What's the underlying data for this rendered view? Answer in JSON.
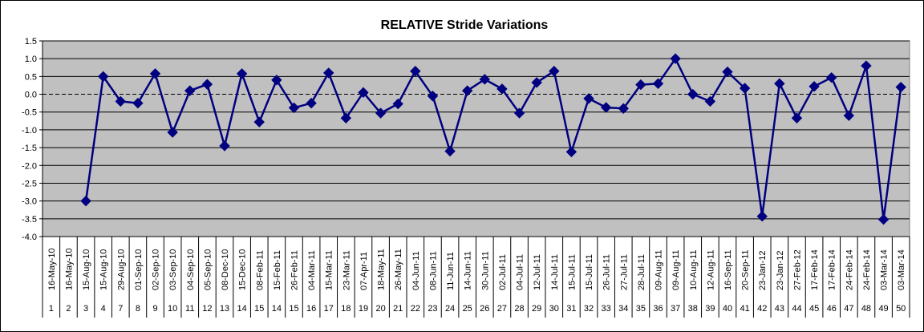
{
  "chart_data": {
    "type": "line",
    "title": "RELATIVE Stride Variations",
    "xlabel": "",
    "ylabel": "",
    "ylim": [
      -4.0,
      1.5
    ],
    "y_ticks": [
      "1.5",
      "1.0",
      "0.5",
      "0.0",
      "-0.5",
      "-1.0",
      "-1.5",
      "-2.0",
      "-2.5",
      "-3.0",
      "-3.5",
      "-4.0"
    ],
    "grid": true,
    "legend": "none",
    "categories": [
      {
        "date": "16-May-10",
        "num": "1"
      },
      {
        "date": "16-May-10",
        "num": "2"
      },
      {
        "date": "15-Aug-10",
        "num": "3"
      },
      {
        "date": "15-Aug-10",
        "num": "4"
      },
      {
        "date": "29-Aug-10",
        "num": "7"
      },
      {
        "date": "01-Sep-10",
        "num": "8"
      },
      {
        "date": "02-Sep-10",
        "num": "9"
      },
      {
        "date": "03-Sep-10",
        "num": "10"
      },
      {
        "date": "04-Sep-10",
        "num": "11"
      },
      {
        "date": "05-Sep-10",
        "num": "12"
      },
      {
        "date": "08-Dec-10",
        "num": "13"
      },
      {
        "date": "15-Dec-10",
        "num": "14"
      },
      {
        "date": "08-Feb-11",
        "num": "15"
      },
      {
        "date": "15-Feb-11",
        "num": "14"
      },
      {
        "date": "26-Feb-11",
        "num": "15"
      },
      {
        "date": "04-Mar-11",
        "num": "16"
      },
      {
        "date": "15-Mar-11",
        "num": "17"
      },
      {
        "date": "23-Mar-11",
        "num": "18"
      },
      {
        "date": "07-Apr-11",
        "num": "19"
      },
      {
        "date": "18-May-11",
        "num": "20"
      },
      {
        "date": "26-May-11",
        "num": "21"
      },
      {
        "date": "04-Jun-11",
        "num": "22"
      },
      {
        "date": "08-Jun-11",
        "num": "23"
      },
      {
        "date": "11-Jun-11",
        "num": "24"
      },
      {
        "date": "14-Jun-11",
        "num": "25"
      },
      {
        "date": "30-Jun-11",
        "num": "26"
      },
      {
        "date": "02-Jul-11",
        "num": "27"
      },
      {
        "date": "04-Jul-11",
        "num": "28"
      },
      {
        "date": "12-Jul-11",
        "num": "29"
      },
      {
        "date": "14-Jul-11",
        "num": "30"
      },
      {
        "date": "15-Jul-11",
        "num": "31"
      },
      {
        "date": "15-Jul-11",
        "num": "32"
      },
      {
        "date": "26-Jul-11",
        "num": "33"
      },
      {
        "date": "27-Jul-11",
        "num": "34"
      },
      {
        "date": "28-Jul-11",
        "num": "35"
      },
      {
        "date": "09-Aug-11",
        "num": "36"
      },
      {
        "date": "09-Aug-11",
        "num": "37"
      },
      {
        "date": "10-Aug-11",
        "num": "38"
      },
      {
        "date": "12-Aug-11",
        "num": "39"
      },
      {
        "date": "16-Sep-11",
        "num": "40"
      },
      {
        "date": "20-Sep-11",
        "num": "41"
      },
      {
        "date": "23-Jan-12",
        "num": "42"
      },
      {
        "date": "23-Jan-12",
        "num": "43"
      },
      {
        "date": "27-Feb-12",
        "num": "44"
      },
      {
        "date": "17-Feb-14",
        "num": "45"
      },
      {
        "date": "17-Feb-14",
        "num": "46"
      },
      {
        "date": "24-Feb-14",
        "num": "47"
      },
      {
        "date": "24-Feb-14",
        "num": "48"
      },
      {
        "date": "03-Mar-14",
        "num": "49"
      },
      {
        "date": "03-Mar-14",
        "num": "50"
      }
    ],
    "series": [
      {
        "color": "#000080",
        "values": [
          null,
          null,
          -3.0,
          0.5,
          -0.2,
          -0.25,
          0.58,
          -1.07,
          0.1,
          0.28,
          -1.45,
          0.58,
          -0.78,
          0.4,
          -0.38,
          -0.25,
          0.6,
          -0.67,
          0.05,
          -0.53,
          -0.27,
          0.65,
          -0.05,
          -1.6,
          0.1,
          0.42,
          0.15,
          -0.53,
          0.33,
          0.65,
          -1.62,
          -0.12,
          -0.37,
          -0.4,
          0.27,
          0.3,
          1.0,
          0.0,
          -0.2,
          0.63,
          0.17,
          -3.43,
          0.3,
          -0.67,
          0.22,
          0.47,
          -0.6,
          0.8,
          -3.52,
          0.2
        ]
      }
    ]
  },
  "colors": {
    "plot_background": "#c0c0c0",
    "gridline": "#000000",
    "series_line": "#000080"
  }
}
